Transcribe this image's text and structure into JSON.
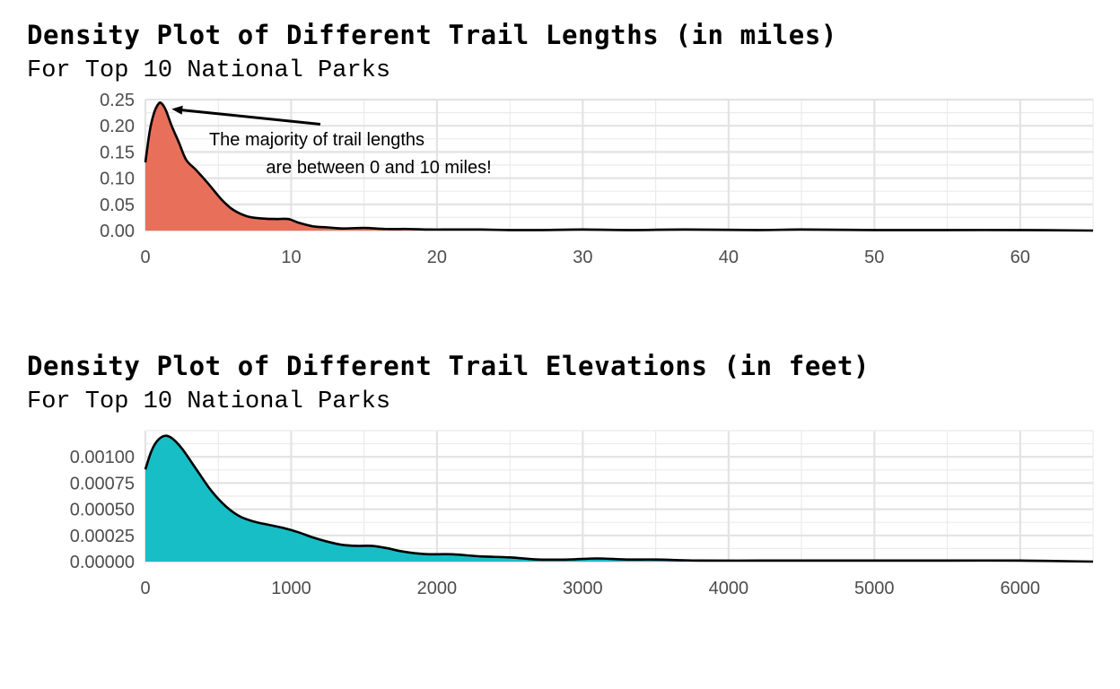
{
  "chart_data": [
    {
      "type": "area",
      "title": "Density Plot of Different Trail Lengths (in miles)",
      "subtitle": "For Top 10 National Parks",
      "xlabel": "",
      "ylabel": "",
      "xlim": [
        0,
        65
      ],
      "ylim": [
        0,
        0.25
      ],
      "xticks": [
        0,
        10,
        20,
        30,
        40,
        50,
        60
      ],
      "xtick_labels": [
        "0",
        "10",
        "20",
        "30",
        "40",
        "50",
        "60"
      ],
      "yticks": [
        0,
        0.05,
        0.1,
        0.15,
        0.2,
        0.25
      ],
      "ytick_labels": [
        "0.00",
        "0.05",
        "0.10",
        "0.15",
        "0.20",
        "0.25"
      ],
      "fill_color": "#E8705A",
      "grid": true,
      "x": [
        0,
        0.3,
        0.6,
        0.9,
        1.1,
        1.4,
        1.8,
        2.3,
        2.8,
        3.5,
        4.3,
        5.2,
        6.0,
        7.0,
        8.0,
        9.0,
        9.8,
        10.5,
        11.5,
        12.5,
        13.5,
        15.0,
        16.5,
        18.0,
        19.5,
        21,
        23,
        25,
        27,
        30,
        33,
        37,
        42,
        45,
        50,
        55,
        60,
        65
      ],
      "y": [
        0.13,
        0.19,
        0.225,
        0.242,
        0.243,
        0.23,
        0.2,
        0.168,
        0.135,
        0.115,
        0.09,
        0.06,
        0.04,
        0.027,
        0.023,
        0.022,
        0.022,
        0.015,
        0.008,
        0.006,
        0.004,
        0.005,
        0.003,
        0.003,
        0.002,
        0.002,
        0.002,
        0.001,
        0.001,
        0.002,
        0.001,
        0.002,
        0.001,
        0.002,
        0.001,
        0.001,
        0.001,
        0.0
      ],
      "annotation": {
        "lines": [
          "The majority of trail lengths",
          "are between 0 and 10 miles!"
        ],
        "arrow_from": [
          12,
          0.203
        ],
        "arrow_to": [
          1.8,
          0.232
        ]
      }
    },
    {
      "type": "area",
      "title": "Density Plot of Different Trail Elevations (in feet)",
      "subtitle": "For Top 10 National Parks",
      "xlabel": "",
      "ylabel": "",
      "xlim": [
        0,
        6500
      ],
      "ylim": [
        0,
        0.00125
      ],
      "xticks": [
        0,
        1000,
        2000,
        3000,
        4000,
        5000,
        6000
      ],
      "xtick_labels": [
        "0",
        "1000",
        "2000",
        "3000",
        "4000",
        "5000",
        "6000"
      ],
      "yticks": [
        0,
        0.00025,
        0.0005,
        0.00075,
        0.001
      ],
      "ytick_labels": [
        "0.00000",
        "0.00025",
        "0.00050",
        "0.00075",
        "0.00100"
      ],
      "fill_color": "#17BEC6",
      "grid": true,
      "x": [
        0,
        40,
        80,
        130,
        180,
        250,
        350,
        450,
        550,
        650,
        750,
        850,
        950,
        1050,
        1150,
        1250,
        1350,
        1450,
        1550,
        1650,
        1750,
        1850,
        1950,
        2100,
        2300,
        2500,
        2700,
        2900,
        3100,
        3300,
        3500,
        3800,
        4200,
        4600,
        5000,
        5500,
        6000,
        6500
      ],
      "y": [
        0.00088,
        0.00105,
        0.00115,
        0.0012,
        0.00118,
        0.00108,
        0.00088,
        0.00068,
        0.00053,
        0.00043,
        0.00038,
        0.00035,
        0.00032,
        0.00028,
        0.00023,
        0.00019,
        0.00016,
        0.00015,
        0.00015,
        0.00013,
        0.0001,
        8e-05,
        7e-05,
        7e-05,
        5e-05,
        4e-05,
        2e-05,
        2e-05,
        3e-05,
        2e-05,
        2e-05,
        1e-05,
        1e-05,
        1e-05,
        1e-05,
        1e-05,
        1e-05,
        0.0
      ]
    }
  ]
}
